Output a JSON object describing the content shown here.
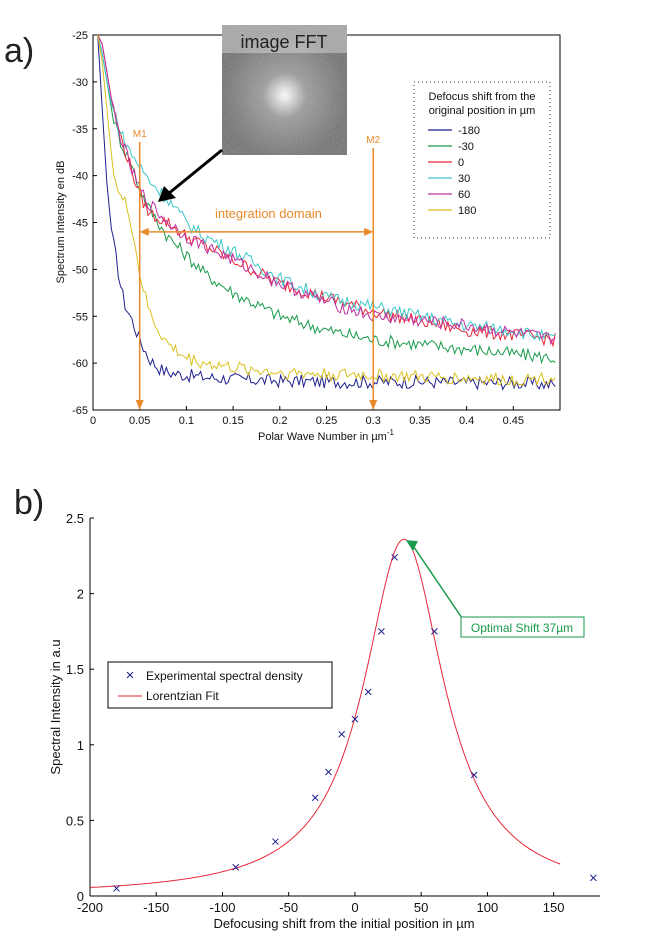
{
  "panel_a_label": "a)",
  "panel_b_label": "b)",
  "fft_inset_label": "image FFT",
  "chart_data": [
    {
      "type": "line",
      "xlabel": "Polar Wave Number in µm",
      "xlabel_sup": "-1",
      "ylabel": "Spectrum Intensity en dB",
      "xlim": [
        0,
        0.5
      ],
      "ylim": [
        -65,
        -25
      ],
      "xticks": [
        0,
        0.05,
        0.1,
        0.15,
        0.2,
        0.25,
        0.3,
        0.35,
        0.4,
        0.45
      ],
      "xtick_labels": [
        "0",
        "0.05",
        "0.1",
        "0.15",
        "0.2",
        "0.25",
        "0.3",
        "0.35",
        "0.4",
        "0.45"
      ],
      "yticks": [
        -65,
        -60,
        -55,
        -50,
        -45,
        -40,
        -35,
        -30,
        -25
      ],
      "ytick_labels": [
        "-65",
        "-60",
        "-55",
        "-50",
        "-45",
        "-40",
        "-35",
        "-30",
        "-25"
      ],
      "legend_title": [
        "Defocus shift from the",
        "original position in µm"
      ],
      "legend_position": "top-right",
      "x": [
        0.005,
        0.01,
        0.015,
        0.02,
        0.025,
        0.03,
        0.035,
        0.04,
        0.05,
        0.06,
        0.07,
        0.08,
        0.1,
        0.12,
        0.15,
        0.2,
        0.25,
        0.3,
        0.35,
        0.4,
        0.45,
        0.495
      ],
      "series": [
        {
          "name": "-180",
          "color": "#1f1f8f",
          "values": [
            -25,
            -33,
            -41,
            -46,
            -49,
            -52,
            -54,
            -55,
            -57.5,
            -59.5,
            -60.5,
            -61,
            -61.3,
            -61.5,
            -61.7,
            -61.9,
            -62,
            -62,
            -62,
            -62.1,
            -62.1,
            -62.3
          ]
        },
        {
          "name": "-30",
          "color": "#1a9a4a",
          "values": [
            -25,
            -27,
            -30,
            -33,
            -35,
            -36.5,
            -37.5,
            -38.5,
            -41.5,
            -43.5,
            -45,
            -46.5,
            -48.5,
            -50.5,
            -52.5,
            -55,
            -56.5,
            -57.5,
            -58,
            -58.5,
            -59,
            -59.5
          ]
        },
        {
          "name": "0",
          "color": "#e8283a",
          "values": [
            -25,
            -26,
            -29,
            -32,
            -34,
            -36,
            -37.5,
            -39,
            -42,
            -44,
            -44.5,
            -45,
            -46.5,
            -47.5,
            -49,
            -51.5,
            -53,
            -54.5,
            -55.5,
            -56.5,
            -57,
            -57.5
          ]
        },
        {
          "name": "30",
          "color": "#3dc8c8",
          "values": [
            -25,
            -27,
            -30,
            -32.5,
            -34,
            -35.5,
            -36.5,
            -37.5,
            -39,
            -40.5,
            -41.5,
            -42.5,
            -45,
            -46.5,
            -48,
            -51,
            -53,
            -54,
            -55,
            -56,
            -56.5,
            -57.5
          ]
        },
        {
          "name": "60",
          "color": "#c030a0",
          "values": [
            -25,
            -26,
            -29,
            -32,
            -34.5,
            -36,
            -37.5,
            -39,
            -41.5,
            -43,
            -44,
            -45,
            -46.5,
            -47.5,
            -49,
            -51.5,
            -53.5,
            -55,
            -55.5,
            -56,
            -56.8,
            -57.5
          ]
        },
        {
          "name": "180",
          "color": "#d9c020",
          "values": [
            -25,
            -28,
            -33,
            -38,
            -41,
            -42.5,
            -43,
            -44.5,
            -50.5,
            -54.5,
            -56.5,
            -58,
            -59.5,
            -60,
            -60.5,
            -61,
            -61.2,
            -61.3,
            -61.5,
            -61.6,
            -61.8,
            -61.5
          ]
        }
      ],
      "annotations": {
        "m1_label": "M1",
        "m1_x": 0.05,
        "m2_label": "M2",
        "m2_x": 0.3,
        "domain_label": "integration domain",
        "domain_y": -46
      }
    },
    {
      "type": "scatter",
      "xlabel": "Defocusing shift from the initial position in µm",
      "ylabel": "Spectral Intensity in a.u",
      "xlim": [
        -200,
        185
      ],
      "ylim": [
        0,
        2.5
      ],
      "xticks": [
        -200,
        -150,
        -100,
        -50,
        0,
        50,
        100,
        150
      ],
      "xtick_labels": [
        "-200",
        "-150",
        "-100",
        "-50",
        "0",
        "50",
        "100",
        "150"
      ],
      "yticks": [
        0,
        0.5,
        1,
        1.5,
        2,
        2.5
      ],
      "ytick_labels": [
        "0",
        "0.5",
        "1",
        "1.5",
        "2",
        "2.5"
      ],
      "legend_position": "middle-left",
      "series": [
        {
          "name": "Experimental spectral density",
          "color": "#1f1f8f",
          "x": [
            -180,
            -90,
            -60,
            -30,
            -20,
            -10,
            0,
            10,
            20,
            30,
            60,
            90,
            180
          ],
          "values": [
            0.05,
            0.19,
            0.36,
            0.65,
            0.82,
            1.07,
            1.17,
            1.35,
            1.75,
            2.24,
            1.75,
            0.8,
            0.12
          ]
        },
        {
          "name": "Lorentzian Fit",
          "color": "#e8283a",
          "x0": 37,
          "gamma": 37,
          "amplitude": 2.36,
          "x_range": [
            -200,
            155
          ]
        }
      ],
      "annotation_label": "Optimal Shift 37µm",
      "annotation_x": 37,
      "annotation_y": 2.36
    }
  ]
}
